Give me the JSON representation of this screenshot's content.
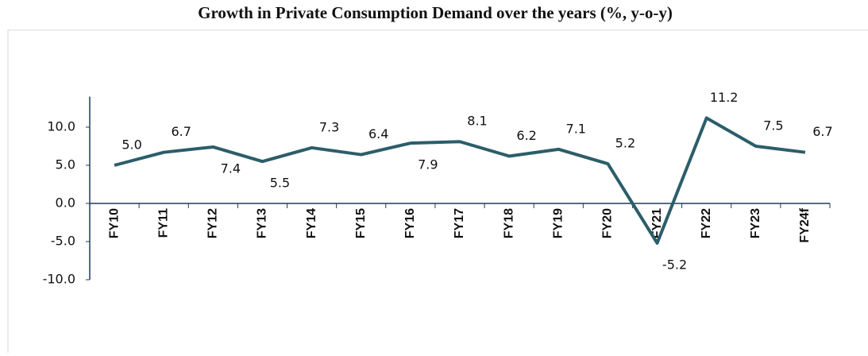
{
  "chart_data": {
    "type": "line",
    "title": "Growth in Private Consumption Demand over the years (%, y-o-y)",
    "categories": [
      "FY10",
      "FY11",
      "FY12",
      "FY13",
      "FY14",
      "FY15",
      "FY16",
      "FY17",
      "FY18",
      "FY19",
      "FY20",
      "FY21",
      "FY22",
      "FY23",
      "FY24f"
    ],
    "series": [
      {
        "name": "Growth",
        "color": "#2c5d6a",
        "values": [
          5.0,
          6.7,
          7.4,
          5.5,
          7.3,
          6.4,
          7.9,
          8.1,
          6.2,
          7.1,
          5.2,
          -5.2,
          11.2,
          7.5,
          6.7
        ],
        "value_labels": [
          "5.0",
          "6.7",
          "7.4",
          "5.5",
          "7.3",
          "6.4",
          "7.9",
          "8.1",
          "6.2",
          "7.1",
          "5.2",
          "-5.2",
          "11.2",
          "7.5",
          "6.7"
        ]
      }
    ],
    "ylim": [
      -10,
      14
    ],
    "yticks": [
      {
        "value": -10,
        "label": "-10.0"
      },
      {
        "value": -5,
        "label": "-5.0"
      },
      {
        "value": 0,
        "label": "0.0"
      },
      {
        "value": 5,
        "label": "5.0"
      },
      {
        "value": 10,
        "label": "10.0"
      }
    ],
    "grid": false
  }
}
